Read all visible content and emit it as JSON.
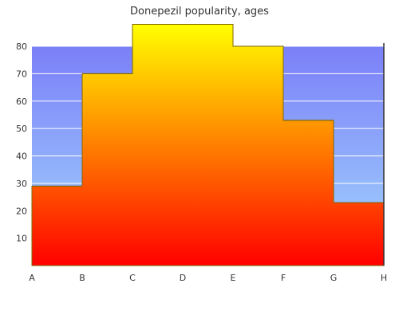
{
  "chart_data": {
    "type": "area",
    "title": "Donepezil popularity, ages",
    "xlabel": "",
    "ylabel": "",
    "categories": [
      "A",
      "B",
      "C",
      "D",
      "E",
      "F",
      "G",
      "H"
    ],
    "series": [
      {
        "values": [
          29,
          70,
          88,
          88,
          80,
          53,
          23,
          23
        ]
      }
    ],
    "ylim": [
      0,
      80
    ],
    "yticks": [
      10,
      20,
      30,
      40,
      50,
      60,
      70,
      80
    ],
    "grid": true,
    "legend": "none",
    "colors": {
      "background_top": "#7b7ff8",
      "background_bottom": "#a3d8fd",
      "fill_top": "#ffff00",
      "fill_bottom": "#ff0000",
      "grid": "#ffffff",
      "outline": "#806600"
    }
  }
}
